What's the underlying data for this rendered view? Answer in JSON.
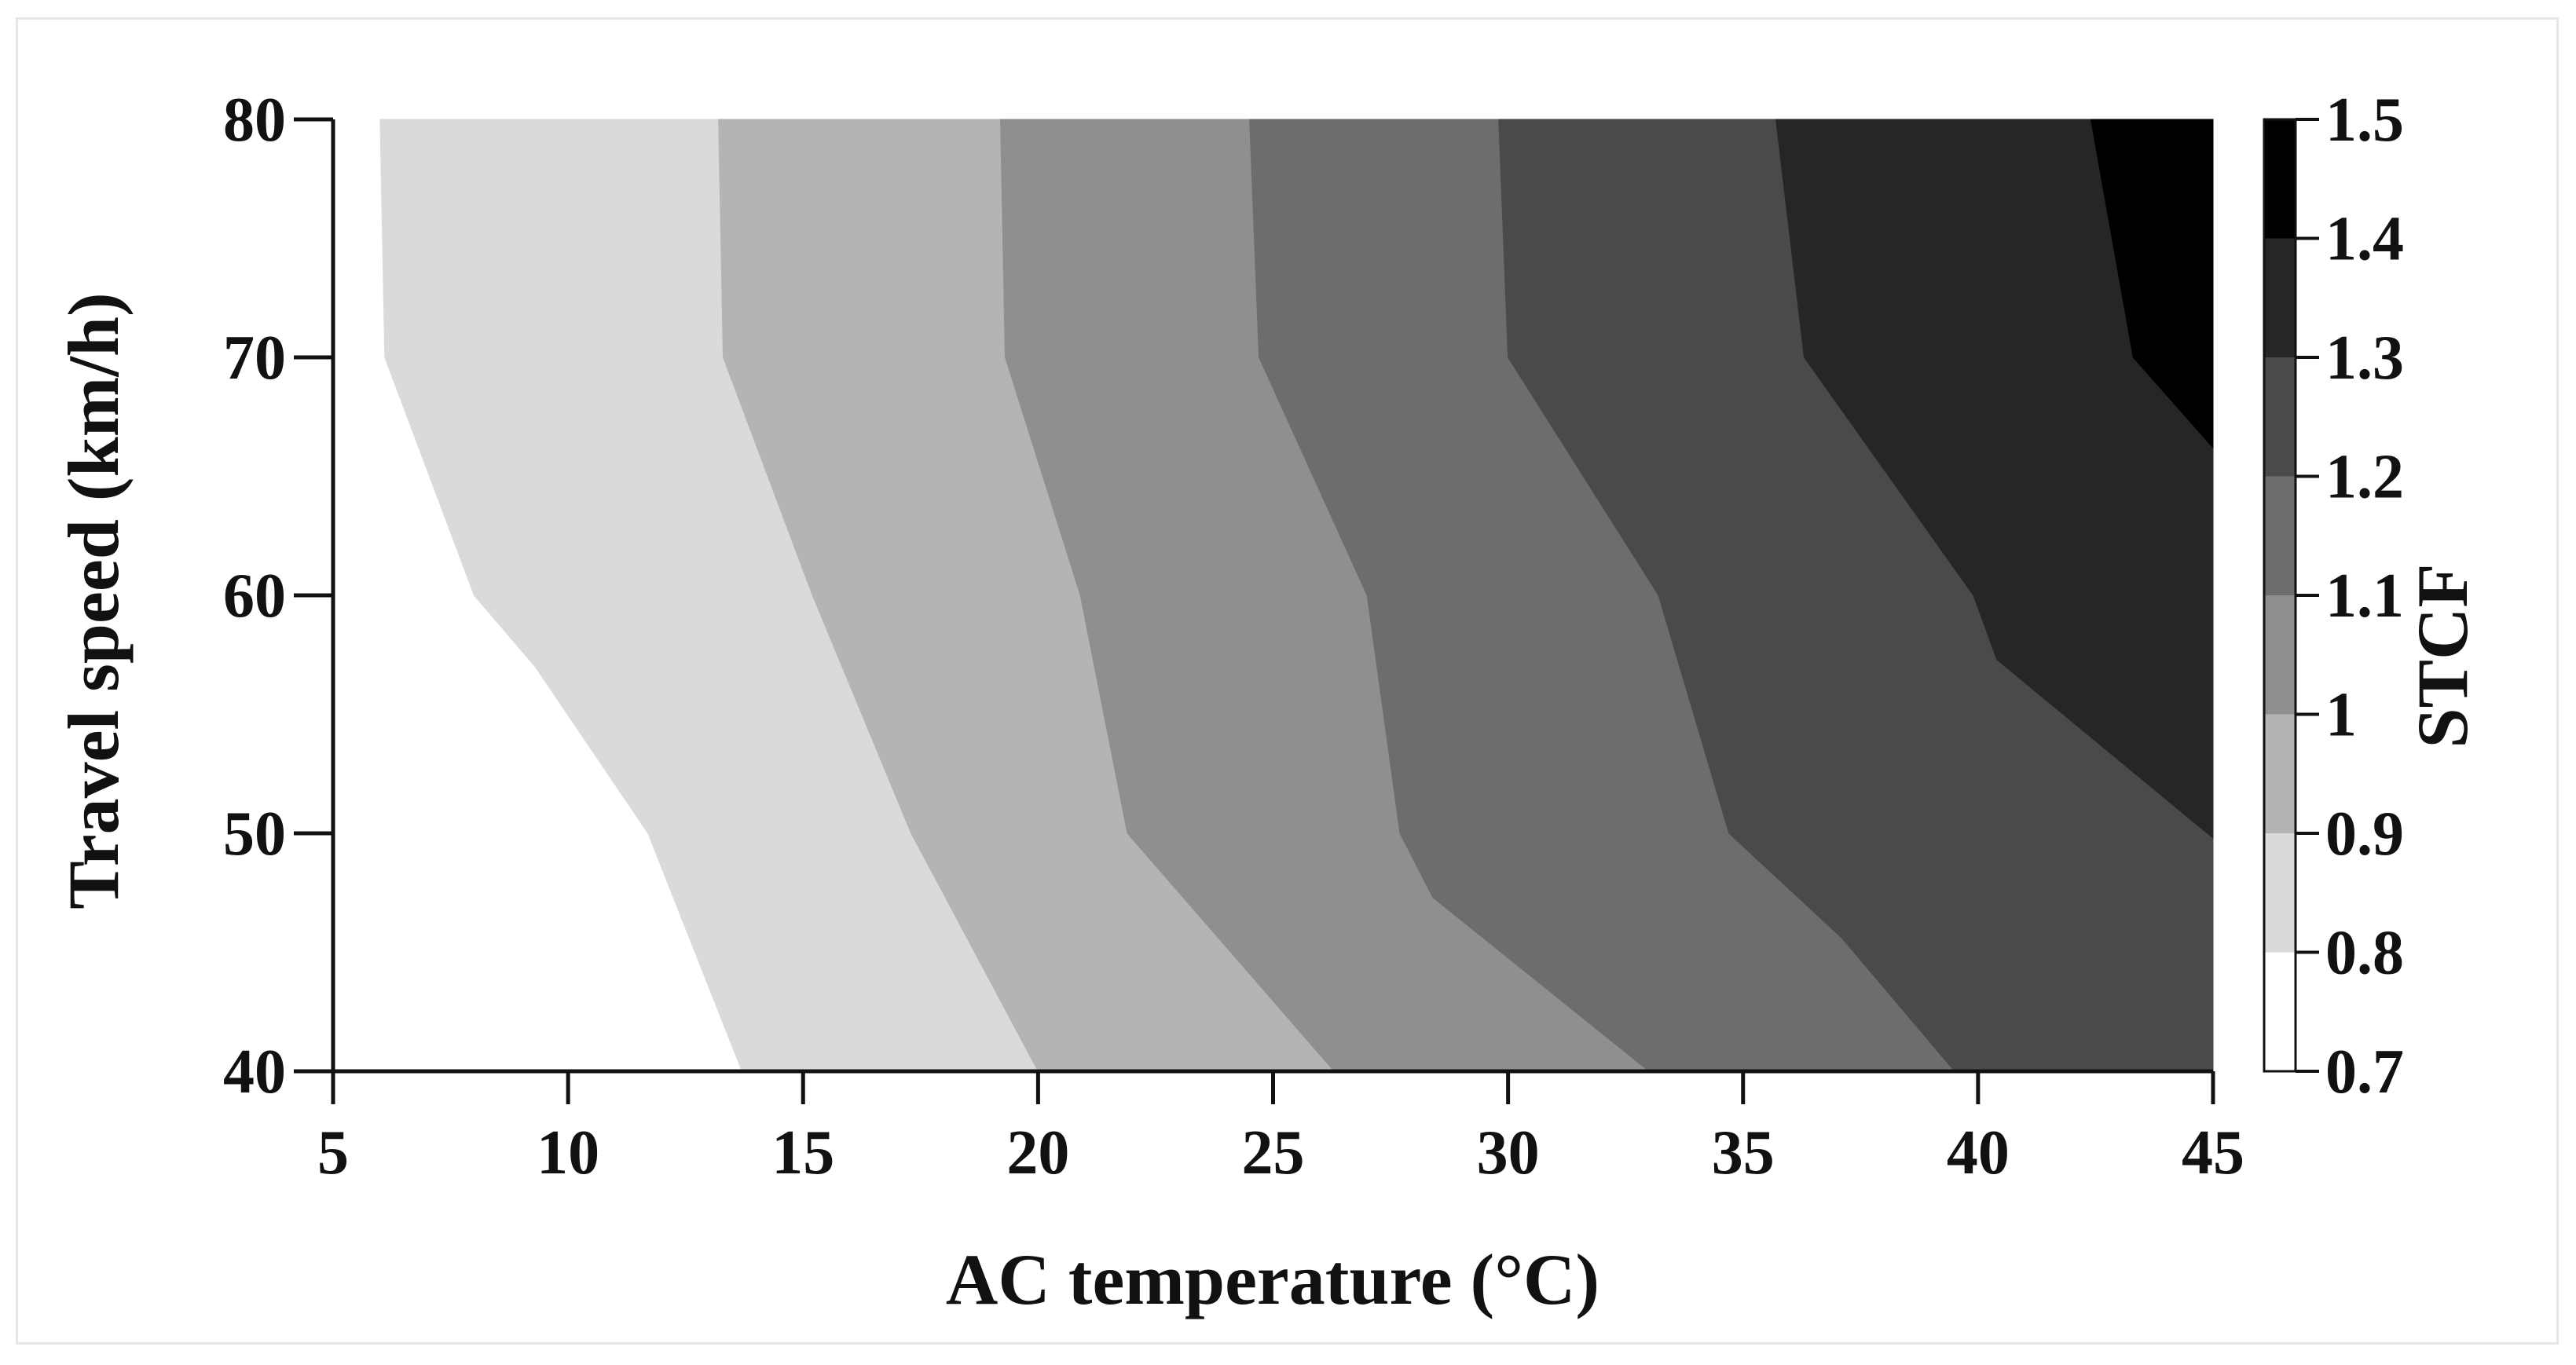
{
  "chart_data": {
    "type": "contour",
    "xlabel": "AC temperature (°C)",
    "ylabel": "Travel speed (km/h)",
    "colorbar_label": "STCF",
    "xlim": [
      5,
      45
    ],
    "ylim": [
      40,
      80
    ],
    "x_ticks": [
      "5",
      "10",
      "15",
      "20",
      "25",
      "30",
      "35",
      "40",
      "45"
    ],
    "y_ticks": [
      "40",
      "50",
      "60",
      "70",
      "80"
    ],
    "colorbar_ticks": [
      "0.7",
      "0.8",
      "0.9",
      "1",
      "1.1",
      "1.2",
      "1.3",
      "1.4",
      "1.5"
    ],
    "levels": [
      0.7,
      0.8,
      0.9,
      1.0,
      1.1,
      1.2,
      1.3,
      1.4,
      1.5
    ],
    "level_colors": [
      "#ffffff",
      "#dadada",
      "#b4b4b4",
      "#8f8f8f",
      "#6d6d6d",
      "#4a4a4a",
      "#262626",
      "#000000"
    ],
    "contour_lines": [
      {
        "level": 0.8,
        "points": [
          [
            6.0,
            80
          ],
          [
            6.1,
            70
          ],
          [
            8.0,
            60
          ],
          [
            9.3,
            57
          ],
          [
            11.7,
            50
          ],
          [
            13.7,
            40
          ]
        ]
      },
      {
        "level": 0.9,
        "points": [
          [
            13.2,
            80
          ],
          [
            13.3,
            70
          ],
          [
            15.2,
            60
          ],
          [
            17.3,
            50
          ],
          [
            20.0,
            40
          ]
        ]
      },
      {
        "level": 1.0,
        "points": [
          [
            19.2,
            80
          ],
          [
            19.3,
            70
          ],
          [
            20.9,
            60
          ],
          [
            21.9,
            50
          ],
          [
            26.3,
            40
          ]
        ]
      },
      {
        "level": 1.1,
        "points": [
          [
            24.5,
            80
          ],
          [
            24.7,
            70
          ],
          [
            27.0,
            60
          ],
          [
            27.7,
            50
          ],
          [
            28.4,
            47.3
          ],
          [
            33.0,
            40
          ]
        ]
      },
      {
        "level": 1.2,
        "points": [
          [
            29.8,
            80
          ],
          [
            30.0,
            70
          ],
          [
            33.2,
            60
          ],
          [
            34.7,
            50
          ],
          [
            37.1,
            45.6
          ],
          [
            39.5,
            40
          ]
        ]
      },
      {
        "level": 1.3,
        "points": [
          [
            35.7,
            80
          ],
          [
            36.3,
            70
          ],
          [
            39.9,
            60
          ],
          [
            40.4,
            57.3
          ],
          [
            45.0,
            49.8
          ]
        ]
      },
      {
        "level": 1.4,
        "points": [
          [
            42.4,
            80
          ],
          [
            43.3,
            70
          ],
          [
            45.0,
            66.2
          ]
        ]
      }
    ]
  }
}
